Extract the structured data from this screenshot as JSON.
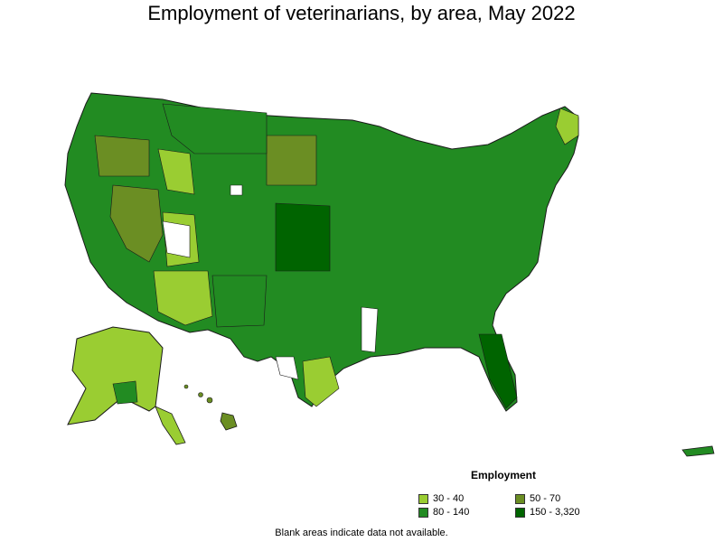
{
  "title": "Employment of veterinarians, by area, May 2022",
  "legend": {
    "title": "Employment",
    "items": [
      {
        "label": "30 - 40",
        "color": "#9acd32"
      },
      {
        "label": "50 - 70",
        "color": "#6b8e23"
      },
      {
        "label": "80 - 140",
        "color": "#228b22"
      },
      {
        "label": "150 - 3,320",
        "color": "#006400"
      }
    ]
  },
  "footnote": "Blank areas indicate data not available.",
  "colors": {
    "no_data": "#ffffff",
    "border": "#1a1a1a"
  }
}
